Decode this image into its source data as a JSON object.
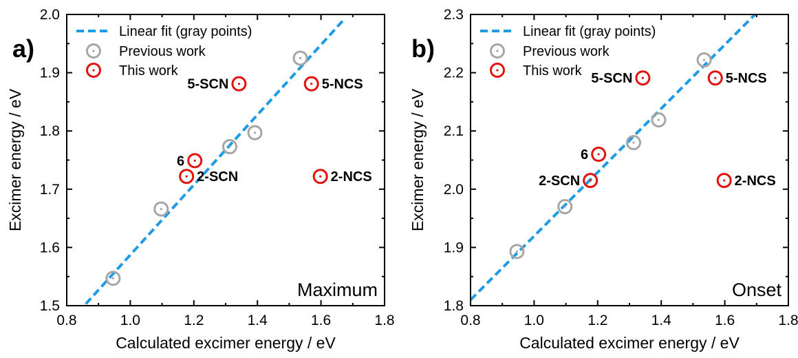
{
  "colors": {
    "fit": "#1E9BE6",
    "previous": "#A6A6A6",
    "this_work": "#E3120B",
    "axis": "#000000"
  },
  "legend": {
    "fit": "Linear fit (gray points)",
    "previous": "Previous work",
    "this_work": "This work"
  },
  "chart_data": [
    {
      "panel": "a)",
      "type": "scatter",
      "corner_label": "Maximum",
      "xlabel": "Calculated excimer energy / eV",
      "ylabel": "Excimer energy / eV",
      "xlim": [
        0.8,
        1.8
      ],
      "ylim": [
        1.5,
        2.0
      ],
      "xticks": [
        "0.8",
        "1.0",
        "1.2",
        "1.4",
        "1.6",
        "1.8"
      ],
      "yticks": [
        "1.5",
        "1.6",
        "1.7",
        "1.8",
        "1.9",
        "2.0"
      ],
      "grid": false,
      "legend_position": "top-left",
      "fit_line": {
        "x": [
          0.86,
          1.675
        ],
        "y": [
          1.503,
          1.993
        ]
      },
      "previous_work": [
        {
          "x": 0.946,
          "y": 1.547
        },
        {
          "x": 1.097,
          "y": 1.666
        },
        {
          "x": 1.313,
          "y": 1.773
        },
        {
          "x": 1.392,
          "y": 1.797
        },
        {
          "x": 1.535,
          "y": 1.925
        }
      ],
      "this_work": [
        {
          "name": "5-SCN",
          "x": 1.342,
          "y": 1.881,
          "label_side": "left"
        },
        {
          "name": "5-NCS",
          "x": 1.57,
          "y": 1.881,
          "label_side": "right"
        },
        {
          "name": "6",
          "x": 1.203,
          "y": 1.749,
          "label_side": "left"
        },
        {
          "name": "2-SCN",
          "x": 1.177,
          "y": 1.722,
          "label_side": "right"
        },
        {
          "name": "2-NCS",
          "x": 1.598,
          "y": 1.722,
          "label_side": "right"
        }
      ]
    },
    {
      "panel": "b)",
      "type": "scatter",
      "corner_label": "Onset",
      "xlabel": "Calculated excimer energy / eV",
      "ylabel": "Excimer energy / eV",
      "xlim": [
        0.8,
        1.8
      ],
      "ylim": [
        1.8,
        2.3
      ],
      "xticks": [
        "0.8",
        "1.0",
        "1.2",
        "1.4",
        "1.6",
        "1.8"
      ],
      "yticks": [
        "1.8",
        "1.9",
        "2.0",
        "2.1",
        "2.2",
        "2.3"
      ],
      "grid": false,
      "legend_position": "top-left",
      "fit_line": {
        "x": [
          0.8,
          1.695
        ],
        "y": [
          1.81,
          2.3
        ]
      },
      "previous_work": [
        {
          "x": 0.946,
          "y": 1.893
        },
        {
          "x": 1.097,
          "y": 1.97
        },
        {
          "x": 1.313,
          "y": 2.08
        },
        {
          "x": 1.392,
          "y": 2.119
        },
        {
          "x": 1.535,
          "y": 2.222
        }
      ],
      "this_work": [
        {
          "name": "5-SCN",
          "x": 1.342,
          "y": 2.191,
          "label_side": "left"
        },
        {
          "name": "5-NCS",
          "x": 1.57,
          "y": 2.191,
          "label_side": "right"
        },
        {
          "name": "6",
          "x": 1.203,
          "y": 2.06,
          "label_side": "left"
        },
        {
          "name": "2-SCN",
          "x": 1.177,
          "y": 2.015,
          "label_side": "left"
        },
        {
          "name": "2-NCS",
          "x": 1.598,
          "y": 2.015,
          "label_side": "right"
        }
      ]
    }
  ]
}
